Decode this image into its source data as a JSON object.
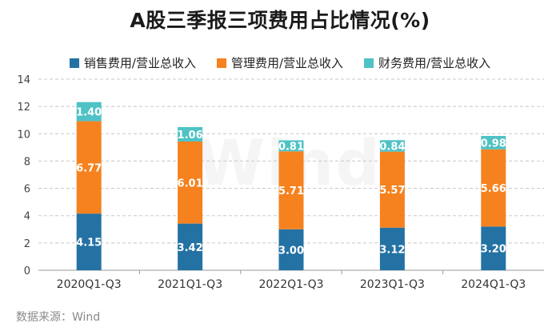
{
  "title": "A股三季报三项费用占比情况(%)",
  "source": "数据来源：Wind",
  "watermark": "Wind",
  "colors": {
    "series": [
      "#2472a4",
      "#f5821f",
      "#4fc2c5"
    ],
    "grid": "#c8c8c8",
    "axis": "#444444",
    "label": "#ffffff"
  },
  "chart_data": {
    "type": "bar",
    "stacked": true,
    "title": "A股三季报三项费用占比情况(%)",
    "categories": [
      "2020Q1-Q3",
      "2021Q1-Q3",
      "2022Q1-Q3",
      "2023Q1-Q3",
      "2024Q1-Q3"
    ],
    "series": [
      {
        "name": "销售费用/营业总收入",
        "values": [
          4.15,
          3.42,
          3.0,
          3.12,
          3.2
        ],
        "labels": [
          "4.15",
          "3.42",
          "3.00",
          "3.12",
          "3.20"
        ]
      },
      {
        "name": "管理费用/营业总收入",
        "values": [
          6.77,
          6.01,
          5.71,
          5.57,
          5.66
        ],
        "labels": [
          "6.77",
          "6.01",
          "5.71",
          "5.57",
          "5.66"
        ]
      },
      {
        "name": "财务费用/营业总收入",
        "values": [
          1.4,
          1.06,
          0.81,
          0.84,
          0.98
        ],
        "labels": [
          "1.40",
          "1.06",
          "0.81",
          "0.84",
          "0.98"
        ]
      }
    ],
    "yticks": [
      0,
      2,
      4,
      6,
      8,
      10,
      12,
      14
    ],
    "ylim": [
      0,
      14
    ],
    "grid": true,
    "legend": "top-center"
  }
}
